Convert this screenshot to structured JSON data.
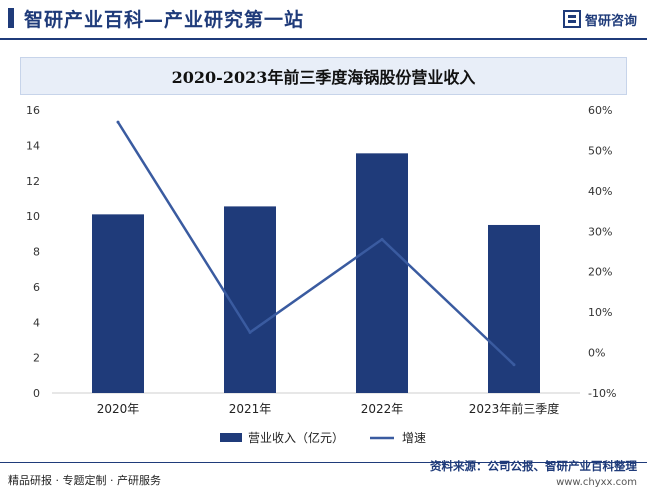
{
  "header": {
    "title": "智研产业百科—产业研究第一站",
    "logo_text": "智研咨询",
    "accent_color": "#1f3b7a"
  },
  "footer": {
    "left_text": "精品研报 · 专题定制 · 产研服务",
    "source": "资料来源：公司公报、智研产业百科整理",
    "site": "www.chyxx.com"
  },
  "chart_data": {
    "type": "bar",
    "title": "2020-2023年前三季度海锅股份营业收入",
    "categories": [
      "2020年",
      "2021年",
      "2022年",
      "2023年前三季度"
    ],
    "series": [
      {
        "name": "营业收入（亿元）",
        "type": "bar",
        "axis": "left",
        "color": "#1f3b7a",
        "values": [
          10.1,
          10.55,
          13.55,
          9.5
        ]
      },
      {
        "name": "增速",
        "type": "line",
        "axis": "right",
        "color": "#3a5ba0",
        "values": [
          57,
          5,
          28,
          -3
        ]
      }
    ],
    "y_left": {
      "min": 0,
      "max": 16,
      "ticks": [
        0,
        2,
        4,
        6,
        8,
        10,
        12,
        14,
        16
      ]
    },
    "y_right": {
      "min": -10,
      "max": 60,
      "ticks": [
        "-10%",
        "0%",
        "10%",
        "20%",
        "30%",
        "40%",
        "50%",
        "60%"
      ]
    },
    "legend_position": "bottom",
    "grid": false
  }
}
